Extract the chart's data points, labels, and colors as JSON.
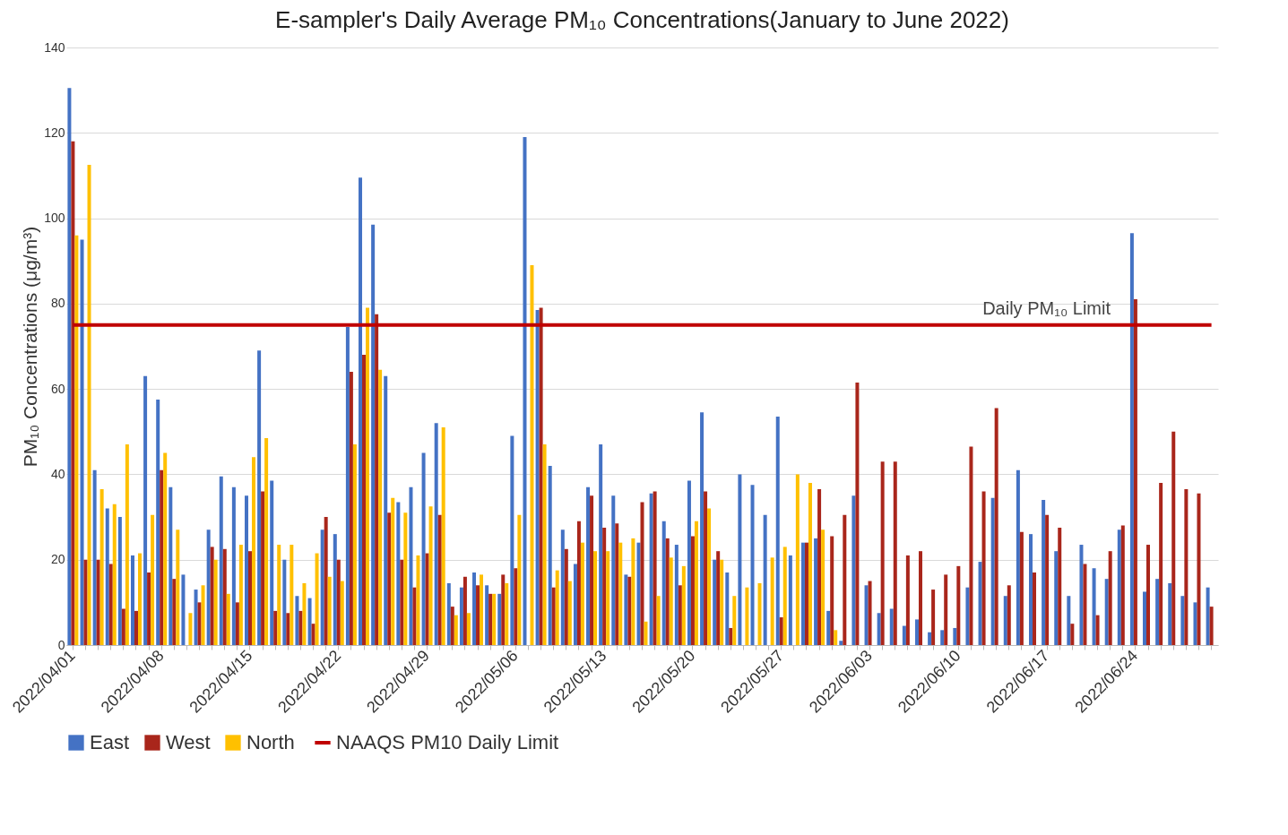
{
  "chart_data": {
    "type": "bar",
    "title": "E-sampler's Daily Average PM₁₀ Concentrations(January to June 2022)",
    "ylabel": "PM₁₀ Concentrations (μg/m³)",
    "categories": [
      "2022/04/01",
      null,
      null,
      null,
      null,
      null,
      null,
      "2022/04/08",
      null,
      null,
      null,
      null,
      null,
      null,
      "2022/04/15",
      null,
      null,
      null,
      null,
      null,
      null,
      "2022/04/22",
      null,
      null,
      null,
      null,
      null,
      null,
      "2022/04/29",
      null,
      null,
      null,
      null,
      null,
      null,
      "2022/05/06",
      null,
      null,
      null,
      null,
      null,
      null,
      "2022/05/13",
      null,
      null,
      null,
      null,
      null,
      null,
      "2022/05/20",
      null,
      null,
      null,
      null,
      null,
      null,
      "2022/05/27",
      null,
      null,
      null,
      null,
      null,
      null,
      "2022/06/03",
      null,
      null,
      null,
      null,
      null,
      null,
      "2022/06/10",
      null,
      null,
      null,
      null,
      null,
      null,
      "2022/06/17",
      null,
      null,
      null,
      null,
      null,
      null,
      "2022/06/24",
      null,
      null,
      null,
      null,
      null,
      null
    ],
    "series": [
      {
        "name": "East",
        "color": "#4472c4",
        "values": [
          130.5,
          95,
          41,
          32,
          30,
          21,
          63,
          57.5,
          37,
          16.5,
          13,
          27,
          39.5,
          37,
          35,
          69,
          38.5,
          20,
          11.5,
          11,
          27,
          26,
          74.5,
          109.5,
          98.5,
          63,
          33.5,
          37,
          45,
          52,
          14.5,
          13.5,
          17,
          14,
          12,
          49,
          119,
          78.5,
          42,
          27,
          19,
          37,
          47,
          35,
          16.5,
          24,
          35.5,
          29,
          23.5,
          38.5,
          54.5,
          20,
          17,
          40,
          37.5,
          30.5,
          53.5,
          21,
          24,
          25,
          8,
          1,
          35,
          14,
          7.5,
          8.5,
          4.5,
          6,
          3,
          3.5,
          4,
          13.5,
          19.5,
          34.5,
          11.5,
          41,
          26,
          34,
          22,
          11.5,
          23.5,
          18,
          15.5,
          27,
          96.5,
          12.5,
          15.5,
          14.5,
          11.5,
          10,
          13.5
        ]
      },
      {
        "name": "West",
        "color": "#a9261b",
        "values": [
          118,
          20,
          20,
          19,
          8.5,
          8,
          17,
          41,
          15.5,
          null,
          10,
          23,
          22.5,
          10,
          22,
          36,
          8,
          7.5,
          8,
          5,
          30,
          20,
          64,
          68,
          77.5,
          31,
          20,
          13.5,
          21.5,
          30.5,
          9,
          16,
          14,
          12,
          16.5,
          18,
          null,
          79,
          13.5,
          22.5,
          29,
          35,
          27.5,
          28.5,
          16,
          33.5,
          36,
          25,
          14,
          25.5,
          36,
          22,
          4,
          null,
          null,
          null,
          6.5,
          null,
          24,
          36.5,
          25.5,
          30.5,
          61.5,
          15,
          43,
          43,
          21,
          22,
          13,
          16.5,
          18.5,
          46.5,
          36,
          55.5,
          14,
          26.5,
          17,
          30.5,
          27.5,
          5,
          19,
          7,
          22,
          28,
          81,
          23.5,
          38,
          50,
          36.5,
          35.5,
          9
        ]
      },
      {
        "name": "North",
        "color": "#ffc000",
        "values": [
          96,
          112.5,
          36.5,
          33,
          47,
          21.5,
          30.5,
          45,
          27,
          7.5,
          14,
          20,
          12,
          23.5,
          44,
          48.5,
          23.5,
          23.5,
          14.5,
          21.5,
          16,
          15,
          47,
          79,
          64.5,
          34.5,
          31,
          21,
          32.5,
          51,
          7,
          7.5,
          16.5,
          12,
          14.5,
          30.5,
          89,
          47,
          17.5,
          15,
          24,
          22,
          22,
          24,
          25,
          5.5,
          11.5,
          20.5,
          18.5,
          29,
          32,
          20,
          11.5,
          13.5,
          14.5,
          20.5,
          23,
          40,
          38,
          27,
          3.5,
          null,
          null,
          null,
          null,
          null,
          null,
          null,
          null,
          null,
          null,
          null,
          null,
          null,
          null,
          null,
          null,
          null,
          null,
          null,
          null,
          null,
          null,
          null,
          null,
          null,
          null,
          null,
          null,
          null,
          null
        ]
      },
      {
        "name": "NAAQS PM10 Daily Limit",
        "type": "line",
        "color": "#c00000",
        "values": [
          75,
          75,
          75,
          75,
          75,
          75,
          75,
          75,
          75,
          75,
          75,
          75,
          75,
          75,
          75,
          75,
          75,
          75,
          75,
          75,
          75,
          75,
          75,
          75,
          75,
          75,
          75,
          75,
          75,
          75,
          75,
          75,
          75,
          75,
          75,
          75,
          75,
          75,
          75,
          75,
          75,
          75,
          75,
          75,
          75,
          75,
          75,
          75,
          75,
          75,
          75,
          75,
          75,
          75,
          75,
          75,
          75,
          75,
          75,
          75,
          75,
          75,
          75,
          75,
          75,
          75,
          75,
          75,
          75,
          75,
          75,
          75,
          75,
          75,
          75,
          75,
          75,
          75,
          75,
          75,
          75,
          75,
          75,
          75,
          75,
          75,
          75,
          75,
          75,
          75,
          75
        ]
      }
    ],
    "annotations": [
      {
        "text": "Daily PM₁₀ Limit",
        "y": 75
      }
    ],
    "ylim": [
      0,
      140
    ],
    "yticks": [
      0,
      20,
      40,
      60,
      80,
      100,
      120,
      140
    ],
    "grid": true,
    "legend": "bottom"
  }
}
